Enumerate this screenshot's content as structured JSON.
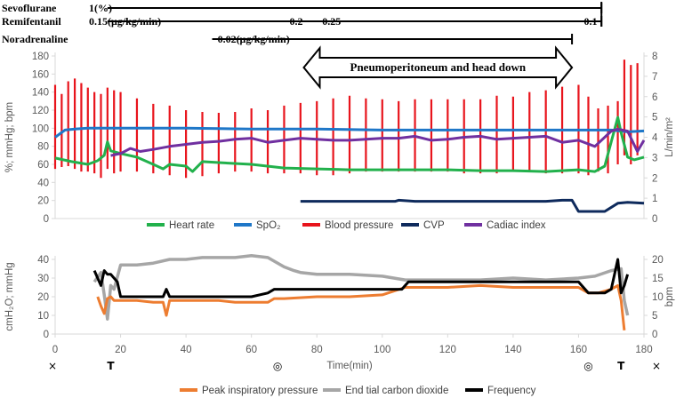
{
  "drugs": [
    {
      "name": "Sevoflurane",
      "labels": [
        {
          "t": 0,
          "text": "1(%)"
        }
      ],
      "start": 16,
      "end": 167,
      "arrow": false
    },
    {
      "name": "Remifentanil",
      "labels": [
        {
          "t": 0,
          "text": "0.15(μg/kg/min)"
        },
        {
          "t": 73,
          "text": "0.2"
        },
        {
          "t": 83,
          "text": "0.25"
        },
        {
          "t": 163,
          "text": "0.1"
        }
      ],
      "start": 16,
      "end": 167,
      "arrow": false
    },
    {
      "name": "Noradrenaline",
      "labels": [
        {
          "t": 51,
          "text": "0.02(μg/kg/min)"
        }
      ],
      "start": 48,
      "end": 158,
      "arrow": true
    }
  ],
  "annotation": {
    "text": "Pneumoperitoneum and head down",
    "start": 76,
    "end": 158
  },
  "x_axis": {
    "label": "Time(min)",
    "min": 0,
    "max": 180,
    "ticks": [
      0,
      20,
      40,
      60,
      80,
      100,
      120,
      140,
      160,
      180
    ]
  },
  "markers": [
    {
      "t": 0,
      "symbol": "×"
    },
    {
      "t": 17,
      "symbol": "T"
    },
    {
      "t": 68,
      "symbol": "◎"
    },
    {
      "t": 163,
      "symbol": "◎"
    },
    {
      "t": 173,
      "symbol": "T"
    },
    {
      "t": 182,
      "symbol": "×"
    }
  ],
  "colors": {
    "heart_rate": "#22b14c",
    "spo2": "#1f77c8",
    "blood_pressure": "#e8141c",
    "cvp": "#0e2a5c",
    "cardiac_index": "#7030a0",
    "peak": "#ed7d31",
    "etco2": "#a6a6a6",
    "frequency": "#000000",
    "axis": "#d9d9d9"
  },
  "chart_data": [
    {
      "type": "line",
      "title": "",
      "ylabel": "%; mmHg; bpm",
      "y2label": "L/min/m²",
      "ylim": [
        0,
        180
      ],
      "yticks": [
        0,
        20,
        40,
        60,
        80,
        100,
        120,
        140,
        160,
        180
      ],
      "y2lim": [
        0,
        8
      ],
      "y2ticks": [
        0,
        1,
        2,
        3,
        4,
        5,
        6,
        7,
        8
      ],
      "legend": [
        "Heart rate",
        "SpO₂",
        "Blood pressure",
        "CVP",
        "Cadiac index"
      ],
      "series": [
        {
          "name": "Heart rate",
          "axis": "left",
          "x": [
            0,
            5,
            10,
            13,
            15,
            16,
            17,
            20,
            25,
            30,
            33,
            35,
            40,
            42,
            45,
            50,
            60,
            70,
            80,
            90,
            100,
            110,
            120,
            130,
            140,
            150,
            160,
            165,
            168,
            170,
            172,
            173,
            175,
            177,
            180
          ],
          "y": [
            67,
            63,
            60,
            64,
            70,
            85,
            75,
            72,
            68,
            60,
            55,
            60,
            58,
            52,
            63,
            62,
            60,
            56,
            55,
            54,
            54,
            54,
            54,
            53,
            53,
            52,
            54,
            52,
            58,
            85,
            112,
            95,
            68,
            65,
            68
          ]
        },
        {
          "name": "SpO₂",
          "axis": "left",
          "x": [
            0,
            3,
            6,
            10,
            20,
            40,
            60,
            80,
            100,
            120,
            140,
            160,
            170,
            175,
            180
          ],
          "y": [
            90,
            98,
            99,
            100,
            100,
            100,
            99,
            99,
            98,
            98,
            98,
            98,
            98,
            96,
            97
          ]
        },
        {
          "name": "Blood pressure",
          "axis": "left",
          "type": "range",
          "x": [
            0,
            2,
            4,
            6,
            8,
            10,
            12,
            14,
            16,
            18,
            20,
            25,
            30,
            35,
            40,
            45,
            50,
            55,
            60,
            65,
            70,
            75,
            80,
            85,
            90,
            95,
            100,
            105,
            110,
            115,
            120,
            125,
            130,
            135,
            140,
            145,
            150,
            155,
            160,
            163,
            166,
            169,
            172,
            174,
            176,
            178
          ],
          "low": [
            55,
            57,
            58,
            55,
            52,
            52,
            50,
            45,
            55,
            50,
            52,
            52,
            50,
            48,
            45,
            47,
            50,
            52,
            52,
            50,
            50,
            50,
            48,
            48,
            50,
            52,
            52,
            52,
            52,
            52,
            52,
            50,
            50,
            50,
            52,
            52,
            50,
            50,
            50,
            48,
            52,
            50,
            60,
            70,
            60,
            70
          ],
          "high": [
            148,
            138,
            152,
            155,
            150,
            145,
            140,
            138,
            145,
            142,
            140,
            133,
            127,
            125,
            120,
            118,
            117,
            118,
            122,
            120,
            125,
            128,
            130,
            133,
            136,
            133,
            132,
            130,
            132,
            132,
            132,
            132,
            132,
            136,
            135,
            140,
            142,
            146,
            148,
            135,
            122,
            125,
            130,
            176,
            170,
            172
          ]
        },
        {
          "name": "CVP",
          "axis": "right",
          "x": [
            75,
            80,
            90,
            100,
            104,
            105,
            110,
            120,
            130,
            140,
            150,
            155,
            158,
            160,
            165,
            168,
            172,
            175,
            180
          ],
          "y": [
            0.85,
            0.85,
            0.85,
            0.85,
            0.85,
            0.9,
            0.85,
            0.85,
            0.85,
            0.85,
            0.85,
            0.9,
            0.9,
            0.35,
            0.35,
            0.35,
            0.75,
            0.8,
            0.75
          ]
        },
        {
          "name": "Cadiac index",
          "axis": "right",
          "x": [
            17,
            20,
            23,
            26,
            30,
            35,
            40,
            45,
            50,
            55,
            60,
            65,
            70,
            75,
            80,
            85,
            90,
            95,
            100,
            105,
            110,
            115,
            120,
            125,
            130,
            135,
            140,
            145,
            150,
            155,
            160,
            165,
            170,
            172,
            175,
            178,
            180
          ],
          "y": [
            3.1,
            3.2,
            3.45,
            3.3,
            3.4,
            3.55,
            3.65,
            3.75,
            3.8,
            3.9,
            3.95,
            3.75,
            3.85,
            3.95,
            3.9,
            3.85,
            3.85,
            3.9,
            3.95,
            3.95,
            4.05,
            3.85,
            3.9,
            4.0,
            4.05,
            3.9,
            3.95,
            4.0,
            4.05,
            3.75,
            3.85,
            3.55,
            4.3,
            4.4,
            4.3,
            3.3,
            3.85
          ]
        }
      ]
    },
    {
      "type": "line",
      "title": "",
      "ylabel": "cmH₂O; mmHg",
      "y2label": "bpm",
      "ylim": [
        0,
        40
      ],
      "yticks": [
        0,
        10,
        20,
        30,
        40
      ],
      "y2lim": [
        0,
        20
      ],
      "y2ticks": [
        0,
        5,
        10,
        15,
        20
      ],
      "legend": [
        "Peak inspiratory pressure",
        "End tial carbon dioxide",
        "Frequency"
      ],
      "series": [
        {
          "name": "Peak inspiratory pressure",
          "axis": "left",
          "x": [
            13,
            14,
            15,
            16,
            17,
            18,
            20,
            25,
            30,
            33,
            34,
            35,
            40,
            50,
            55,
            60,
            65,
            67,
            70,
            80,
            90,
            100,
            107,
            110,
            120,
            130,
            140,
            150,
            160,
            163,
            166,
            170,
            172,
            173,
            174
          ],
          "y": [
            20,
            15,
            11,
            19,
            20,
            18,
            18,
            18,
            17,
            17,
            10,
            18,
            18,
            18,
            17,
            17,
            17,
            19,
            19,
            20,
            20,
            21,
            25,
            25,
            25,
            26,
            25,
            25,
            25,
            22,
            22,
            24,
            26,
            18,
            2
          ]
        },
        {
          "name": "End tial carbon dioxide",
          "axis": "left",
          "x": [
            12,
            14,
            15,
            16,
            17,
            18,
            20,
            25,
            30,
            35,
            40,
            45,
            50,
            55,
            60,
            65,
            70,
            73,
            75,
            80,
            90,
            100,
            107,
            110,
            120,
            130,
            140,
            150,
            160,
            165,
            170,
            173,
            174,
            175
          ],
          "y": [
            28,
            33,
            21,
            8,
            26,
            24,
            37,
            37,
            38,
            40,
            40,
            41,
            41,
            41,
            42,
            41,
            36,
            34,
            33,
            32,
            32,
            31,
            29,
            29,
            29,
            29,
            30,
            29,
            30,
            31,
            34,
            35,
            18,
            10
          ]
        },
        {
          "name": "Frequency",
          "axis": "right",
          "x": [
            12,
            14,
            15,
            16,
            17,
            18,
            19,
            20,
            30,
            33,
            34,
            35,
            40,
            60,
            65,
            67,
            70,
            80,
            100,
            106,
            108,
            110,
            120,
            140,
            160,
            163,
            165,
            168,
            170,
            172,
            173,
            174,
            175
          ],
          "y": [
            17,
            13,
            17,
            16,
            16,
            15,
            14,
            10,
            10,
            10,
            12,
            10,
            10,
            10,
            11,
            12,
            12,
            12,
            12,
            12,
            14,
            14,
            14,
            14,
            14,
            11,
            11,
            11,
            12,
            20,
            11,
            13,
            16
          ]
        }
      ]
    }
  ]
}
